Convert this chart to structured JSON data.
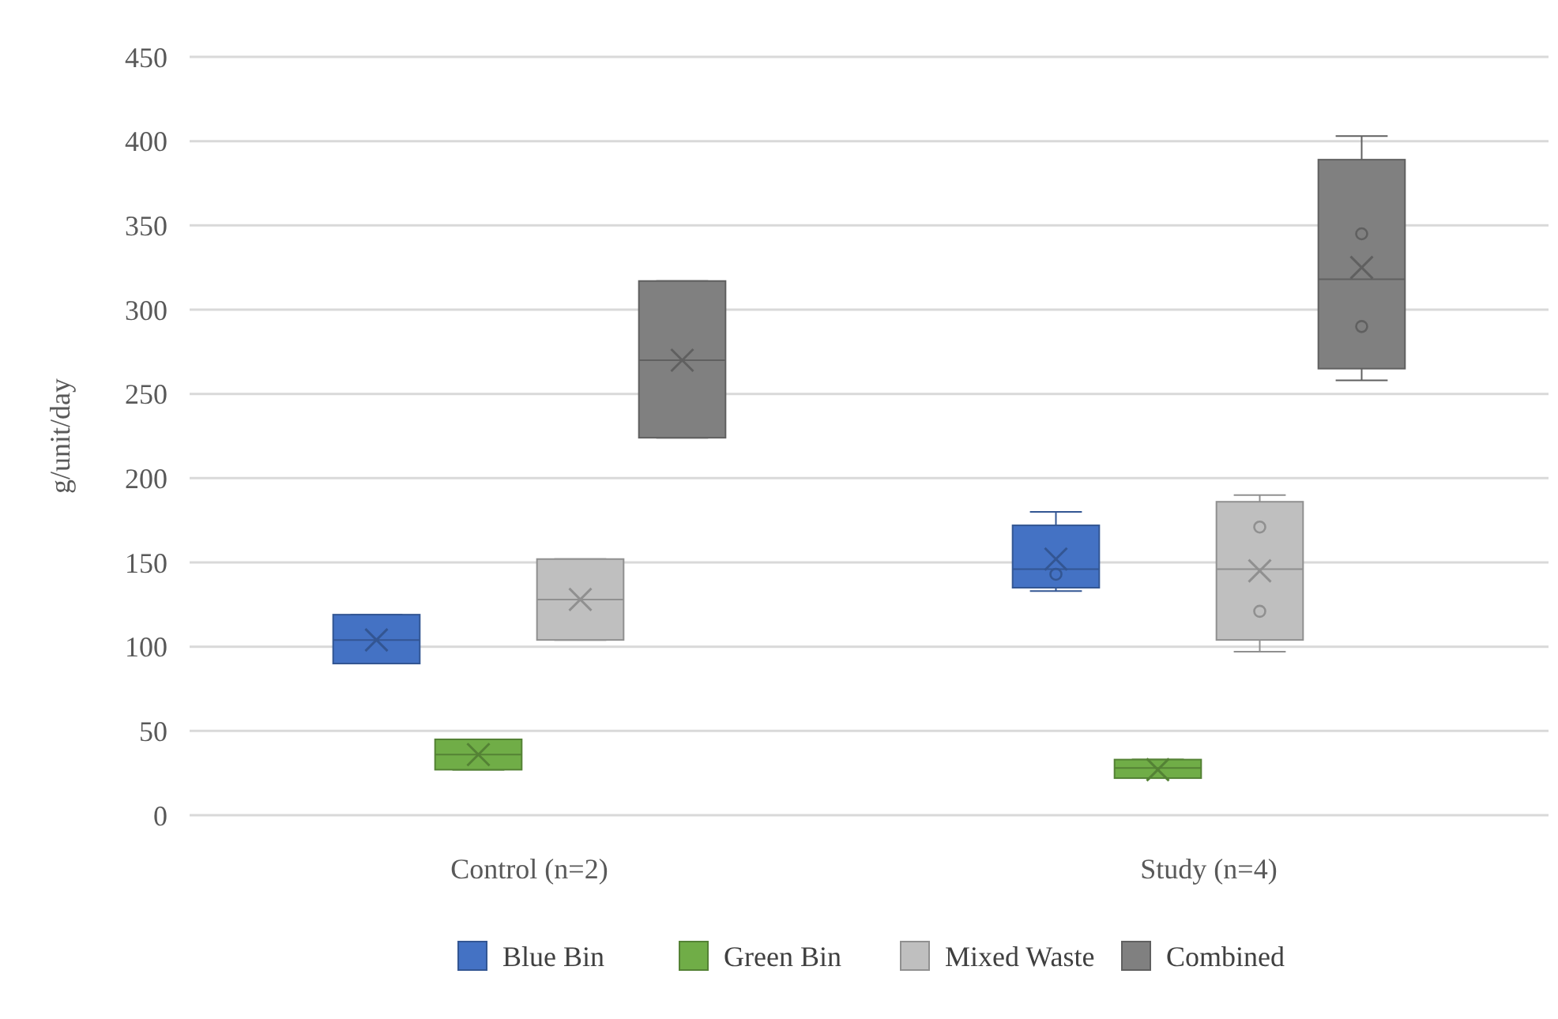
{
  "chart_data": {
    "type": "box",
    "ylabel": "g/unit/day",
    "categories": [
      "Control (n=2)",
      "Study (n=4)"
    ],
    "ylim": [
      0,
      450
    ],
    "yticks": [
      0,
      50,
      100,
      150,
      200,
      250,
      300,
      350,
      400,
      450
    ],
    "grid": "y",
    "legend": "bottom",
    "series": [
      {
        "name": "Blue Bin",
        "color": "#4472c4",
        "boxes": [
          {
            "low": 90,
            "q1": 90,
            "median": 104,
            "q3": 119,
            "high": 119,
            "mean": 104
          },
          {
            "low": 133,
            "q1": 135,
            "median": 146,
            "q3": 172,
            "high": 180,
            "mean": 152,
            "outliers": [
              143
            ]
          }
        ]
      },
      {
        "name": "Green Bin",
        "color": "#70ad47",
        "boxes": [
          {
            "low": 27,
            "q1": 27,
            "median": 36,
            "q3": 45,
            "high": 45,
            "mean": 36
          },
          {
            "low": 22,
            "q1": 22,
            "median": 28,
            "q3": 33,
            "high": 33,
            "mean": 27
          }
        ]
      },
      {
        "name": "Mixed Waste",
        "color": "#bfbfbf",
        "boxes": [
          {
            "low": 104,
            "q1": 104,
            "median": 128,
            "q3": 152,
            "high": 152,
            "mean": 128
          },
          {
            "low": 97,
            "q1": 104,
            "median": 146,
            "q3": 186,
            "high": 190,
            "mean": 145,
            "outliers": [
              171,
              121
            ]
          }
        ]
      },
      {
        "name": "Combined",
        "color": "#808080",
        "boxes": [
          {
            "low": 224,
            "q1": 224,
            "median": 270,
            "q3": 317,
            "high": 317,
            "mean": 270
          },
          {
            "low": 258,
            "q1": 265,
            "median": 318,
            "q3": 389,
            "high": 403,
            "mean": 325,
            "outliers": [
              345,
              290
            ]
          }
        ]
      }
    ]
  }
}
